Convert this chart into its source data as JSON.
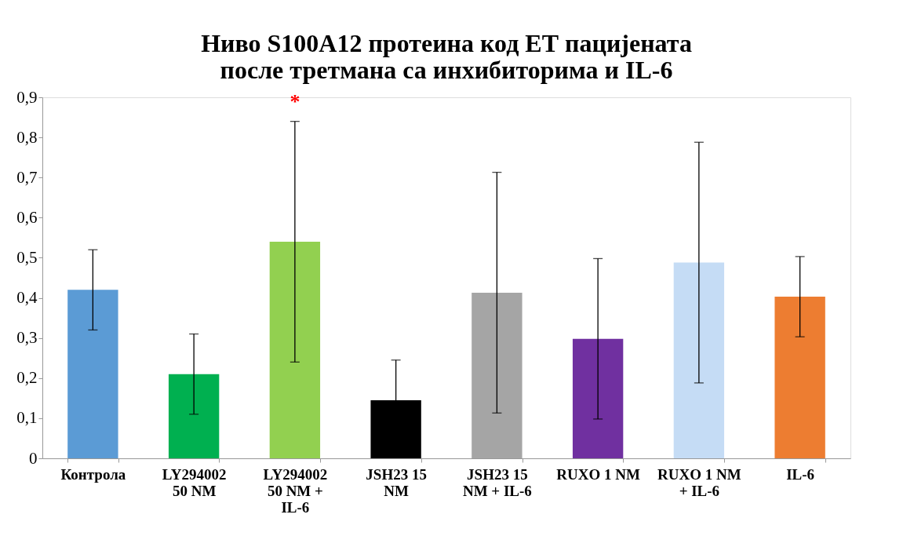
{
  "chart_data": {
    "type": "bar",
    "title": "Ниво S100A12 протеина код ЕТ пацијената после третмана са инхибиторима и IL-6",
    "categories": [
      "Контрола",
      "LY294002 50 NM",
      "LY294002 50 NM + IL-6",
      "JSH23 15 NM",
      "JSH23 15 NM + IL-6",
      "RUXO 1 NM",
      "RUXO 1 NM + IL-6",
      "IL-6"
    ],
    "values": [
      0.42,
      0.21,
      0.54,
      0.145,
      0.413,
      0.298,
      0.488,
      0.403
    ],
    "errors": [
      0.1,
      0.1,
      0.3,
      0.1,
      0.3,
      0.2,
      0.3,
      0.1
    ],
    "colors": [
      "#5b9bd5",
      "#00b050",
      "#92d050",
      "#000000",
      "#a5a5a5",
      "#7030a0",
      "#c5dcf5",
      "#ed7d31"
    ],
    "ylim": [
      0,
      0.9
    ],
    "yticks": [
      0,
      {
        "value": 0.1,
        "label": "0,1"
      },
      {
        "value": 0.2,
        "label": "0,2"
      },
      {
        "value": 0.3,
        "label": "0,3"
      },
      {
        "value": 0.4,
        "label": "0,4"
      },
      {
        "value": 0.5,
        "label": "0,5"
      },
      {
        "value": 0.6,
        "label": "0,6"
      },
      {
        "value": 0.7,
        "label": "0,7"
      },
      {
        "value": 0.8,
        "label": "0,8"
      },
      {
        "value": 0.9,
        "label": "0,9"
      }
    ],
    "grid": false,
    "annotations": [
      "*"
    ]
  }
}
